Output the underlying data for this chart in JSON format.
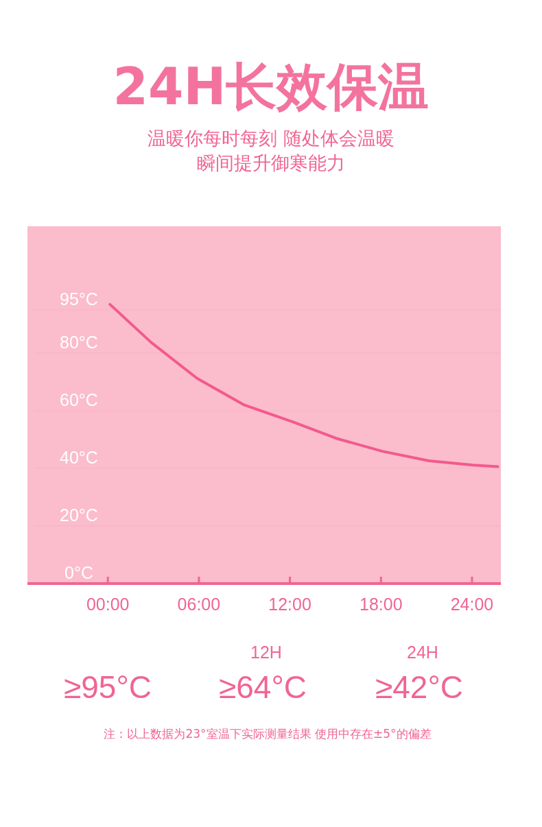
{
  "chart_data": {
    "type": "line",
    "title": "24H长效保温",
    "subtitle": "温暖你每时每刻 随处体会温暖瞬间提升御寒能力",
    "x": [
      0.14,
      2.83,
      5.88,
      8.94,
      12.24,
      15.05,
      18.1,
      21.16,
      24.08,
      25.7
    ],
    "series": [
      {
        "color": "#f25a8c",
        "values": [
          96.9,
          83.8,
          71.2,
          62.1,
          56.0,
          50.4,
          45.9,
          42.6,
          41.1,
          40.6
        ]
      }
    ],
    "xlim": [
      -5.3,
      25.9
    ],
    "ylim": [
      0,
      124
    ],
    "xticks": [
      {
        "value": 0,
        "label": "00:00"
      },
      {
        "value": 6,
        "label": "06:00"
      },
      {
        "value": 12,
        "label": "12:00"
      },
      {
        "value": 18,
        "label": "18:00"
      },
      {
        "value": 24,
        "label": "24:00"
      }
    ],
    "yticks": [
      {
        "value": 0,
        "label": "0°C"
      },
      {
        "value": 20,
        "label": "20°C"
      },
      {
        "value": 40,
        "label": "40°C"
      },
      {
        "value": 60,
        "label": "60°C"
      },
      {
        "value": 80,
        "label": "80°C"
      },
      {
        "value": 95,
        "label": "95°C"
      }
    ],
    "grid": "y",
    "marker": "none",
    "line_style": "solid",
    "annotations": [
      "≥95°C",
      "12H",
      "≥64°C",
      "24H",
      "≥42°C",
      "注：以上数据为23°室温下实际测量结果 使用中存在±5°的偏差"
    ]
  }
}
